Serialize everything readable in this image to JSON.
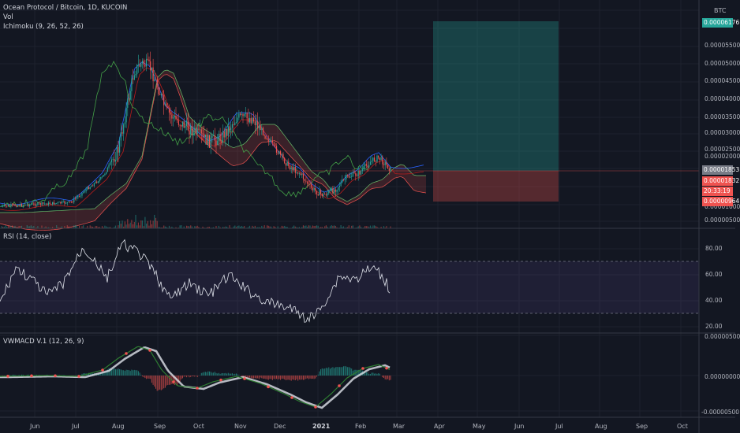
{
  "legend": {
    "symbol": "Ocean Protocol / Bitcoin, 1D, KUCOIN",
    "vol": "Vol",
    "ichimoku": "Ichimoku (9, 26, 52, 26)",
    "rsi": "RSI (14, close)",
    "vwmacd": "VWMACD V.1 (12, 26, 9)"
  },
  "currency": "BTC",
  "price_axis": {
    "ticks": [
      "0.00005500",
      "0.00005000",
      "0.00004500",
      "0.00004000",
      "0.00003500",
      "0.00003000",
      "0.00002500",
      "0.00002000",
      "0.00001000",
      "0.00000500"
    ],
    "badges": {
      "target": "0.00006176",
      "last": "0.00001853",
      "entry": "0.00001832",
      "timer": "20:33:19",
      "stop": "0.00000964"
    }
  },
  "rsi_axis": [
    "80.00",
    "60.00",
    "40.00",
    "20.00"
  ],
  "macd_axis": [
    "0.00000500",
    "0.00000000",
    "-0.00000500"
  ],
  "months": [
    "Jun",
    "Jul",
    "Aug",
    "Sep",
    "Oct",
    "Nov",
    "Dec",
    "2021",
    "Feb",
    "Mar",
    "Apr",
    "May",
    "Jun",
    "Jul",
    "Aug",
    "Sep",
    "Oct"
  ],
  "colors": {
    "background": "#131722",
    "up": "#26a69a",
    "down": "#ef5350",
    "rsi_band": "#7e57c2",
    "target_zone": "#26a69a",
    "stop_zone": "#ef5350"
  }
}
